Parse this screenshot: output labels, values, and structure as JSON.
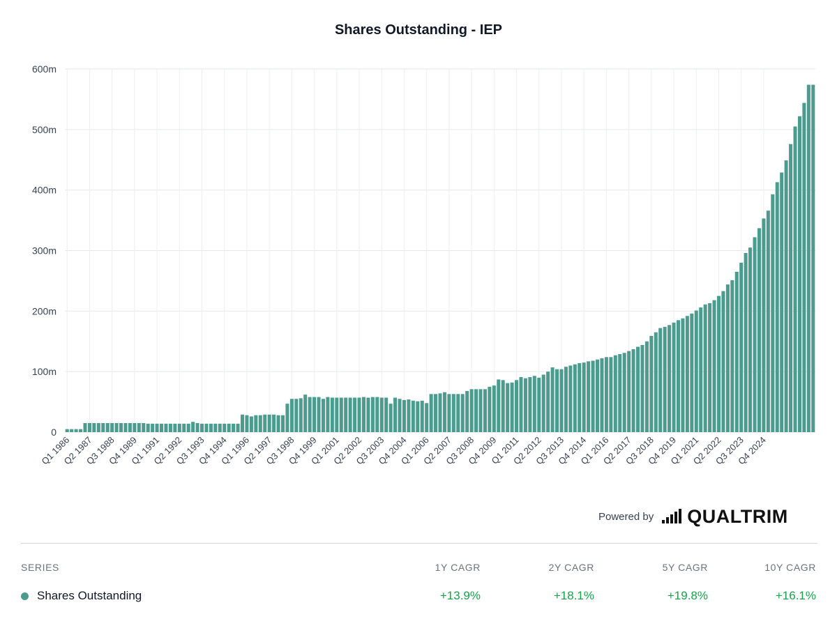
{
  "chart_data": {
    "type": "bar",
    "title": "Shares Outstanding - IEP",
    "xlabel": "",
    "ylabel": "",
    "ylim": [
      0,
      600
    ],
    "yunit": "m",
    "ytick_labels": [
      "0",
      "100m",
      "200m",
      "300m",
      "400m",
      "500m",
      "600m"
    ],
    "grid": true,
    "xtick_labels": [
      "Q1 1986",
      "Q2 1987",
      "Q3 1988",
      "Q4 1989",
      "Q1 1991",
      "Q2 1992",
      "Q3 1993",
      "Q4 1994",
      "Q1 1996",
      "Q2 1997",
      "Q3 1998",
      "Q4 1999",
      "Q1 2001",
      "Q2 2002",
      "Q3 2003",
      "Q4 2004",
      "Q1 2006",
      "Q2 2007",
      "Q3 2008",
      "Q4 2009",
      "Q1 2011",
      "Q2 2012",
      "Q3 2013",
      "Q4 2014",
      "Q1 2016",
      "Q2 2017",
      "Q3 2018",
      "Q4 2019",
      "Q1 2021",
      "Q2 2022",
      "Q3 2023",
      "Q4 2024"
    ],
    "series": [
      {
        "name": "Shares Outstanding",
        "color": "#4b9b8f",
        "values": [
          5,
          5,
          5,
          5,
          15,
          15,
          15,
          15,
          15,
          15,
          15,
          15,
          15,
          15,
          15,
          15,
          15,
          15,
          14,
          14,
          14,
          14,
          14,
          14,
          14,
          14,
          14,
          14,
          17,
          15,
          14,
          14,
          14,
          14,
          14,
          14,
          14,
          14,
          14,
          29,
          28,
          26,
          28,
          28,
          29,
          29,
          29,
          28,
          28,
          47,
          55,
          55,
          56,
          62,
          58,
          58,
          58,
          55,
          58,
          57,
          57,
          57,
          57,
          57,
          57,
          57,
          58,
          57,
          58,
          58,
          57,
          57,
          47,
          57,
          55,
          53,
          54,
          52,
          51,
          52,
          48,
          63,
          63,
          64,
          66,
          63,
          63,
          63,
          63,
          68,
          71,
          71,
          71,
          71,
          75,
          77,
          87,
          86,
          81,
          82,
          86,
          91,
          89,
          91,
          93,
          90,
          95,
          100,
          107,
          104,
          104,
          108,
          110,
          112,
          114,
          115,
          117,
          118,
          120,
          122,
          124,
          124,
          127,
          129,
          131,
          134,
          137,
          141,
          144,
          150,
          159,
          165,
          172,
          174,
          177,
          181,
          185,
          188,
          192,
          196,
          201,
          206,
          211,
          213,
          218,
          225,
          233,
          244,
          251,
          265,
          280,
          296,
          305,
          322,
          337,
          353,
          366,
          393,
          413,
          429,
          449,
          476,
          505,
          522,
          544,
          574,
          574
        ]
      }
    ]
  },
  "powered_by": {
    "text": "Powered by",
    "brand": "QUALTRIM"
  },
  "table": {
    "headers": {
      "series": "SERIES",
      "c1": "1Y CAGR",
      "c2": "2Y CAGR",
      "c3": "5Y CAGR",
      "c4": "10Y CAGR"
    },
    "rows": [
      {
        "name": "Shares Outstanding",
        "color": "#4b9b8f",
        "c1": "+13.9%",
        "c2": "+18.1%",
        "c3": "+19.8%",
        "c4": "+16.1%"
      }
    ]
  }
}
